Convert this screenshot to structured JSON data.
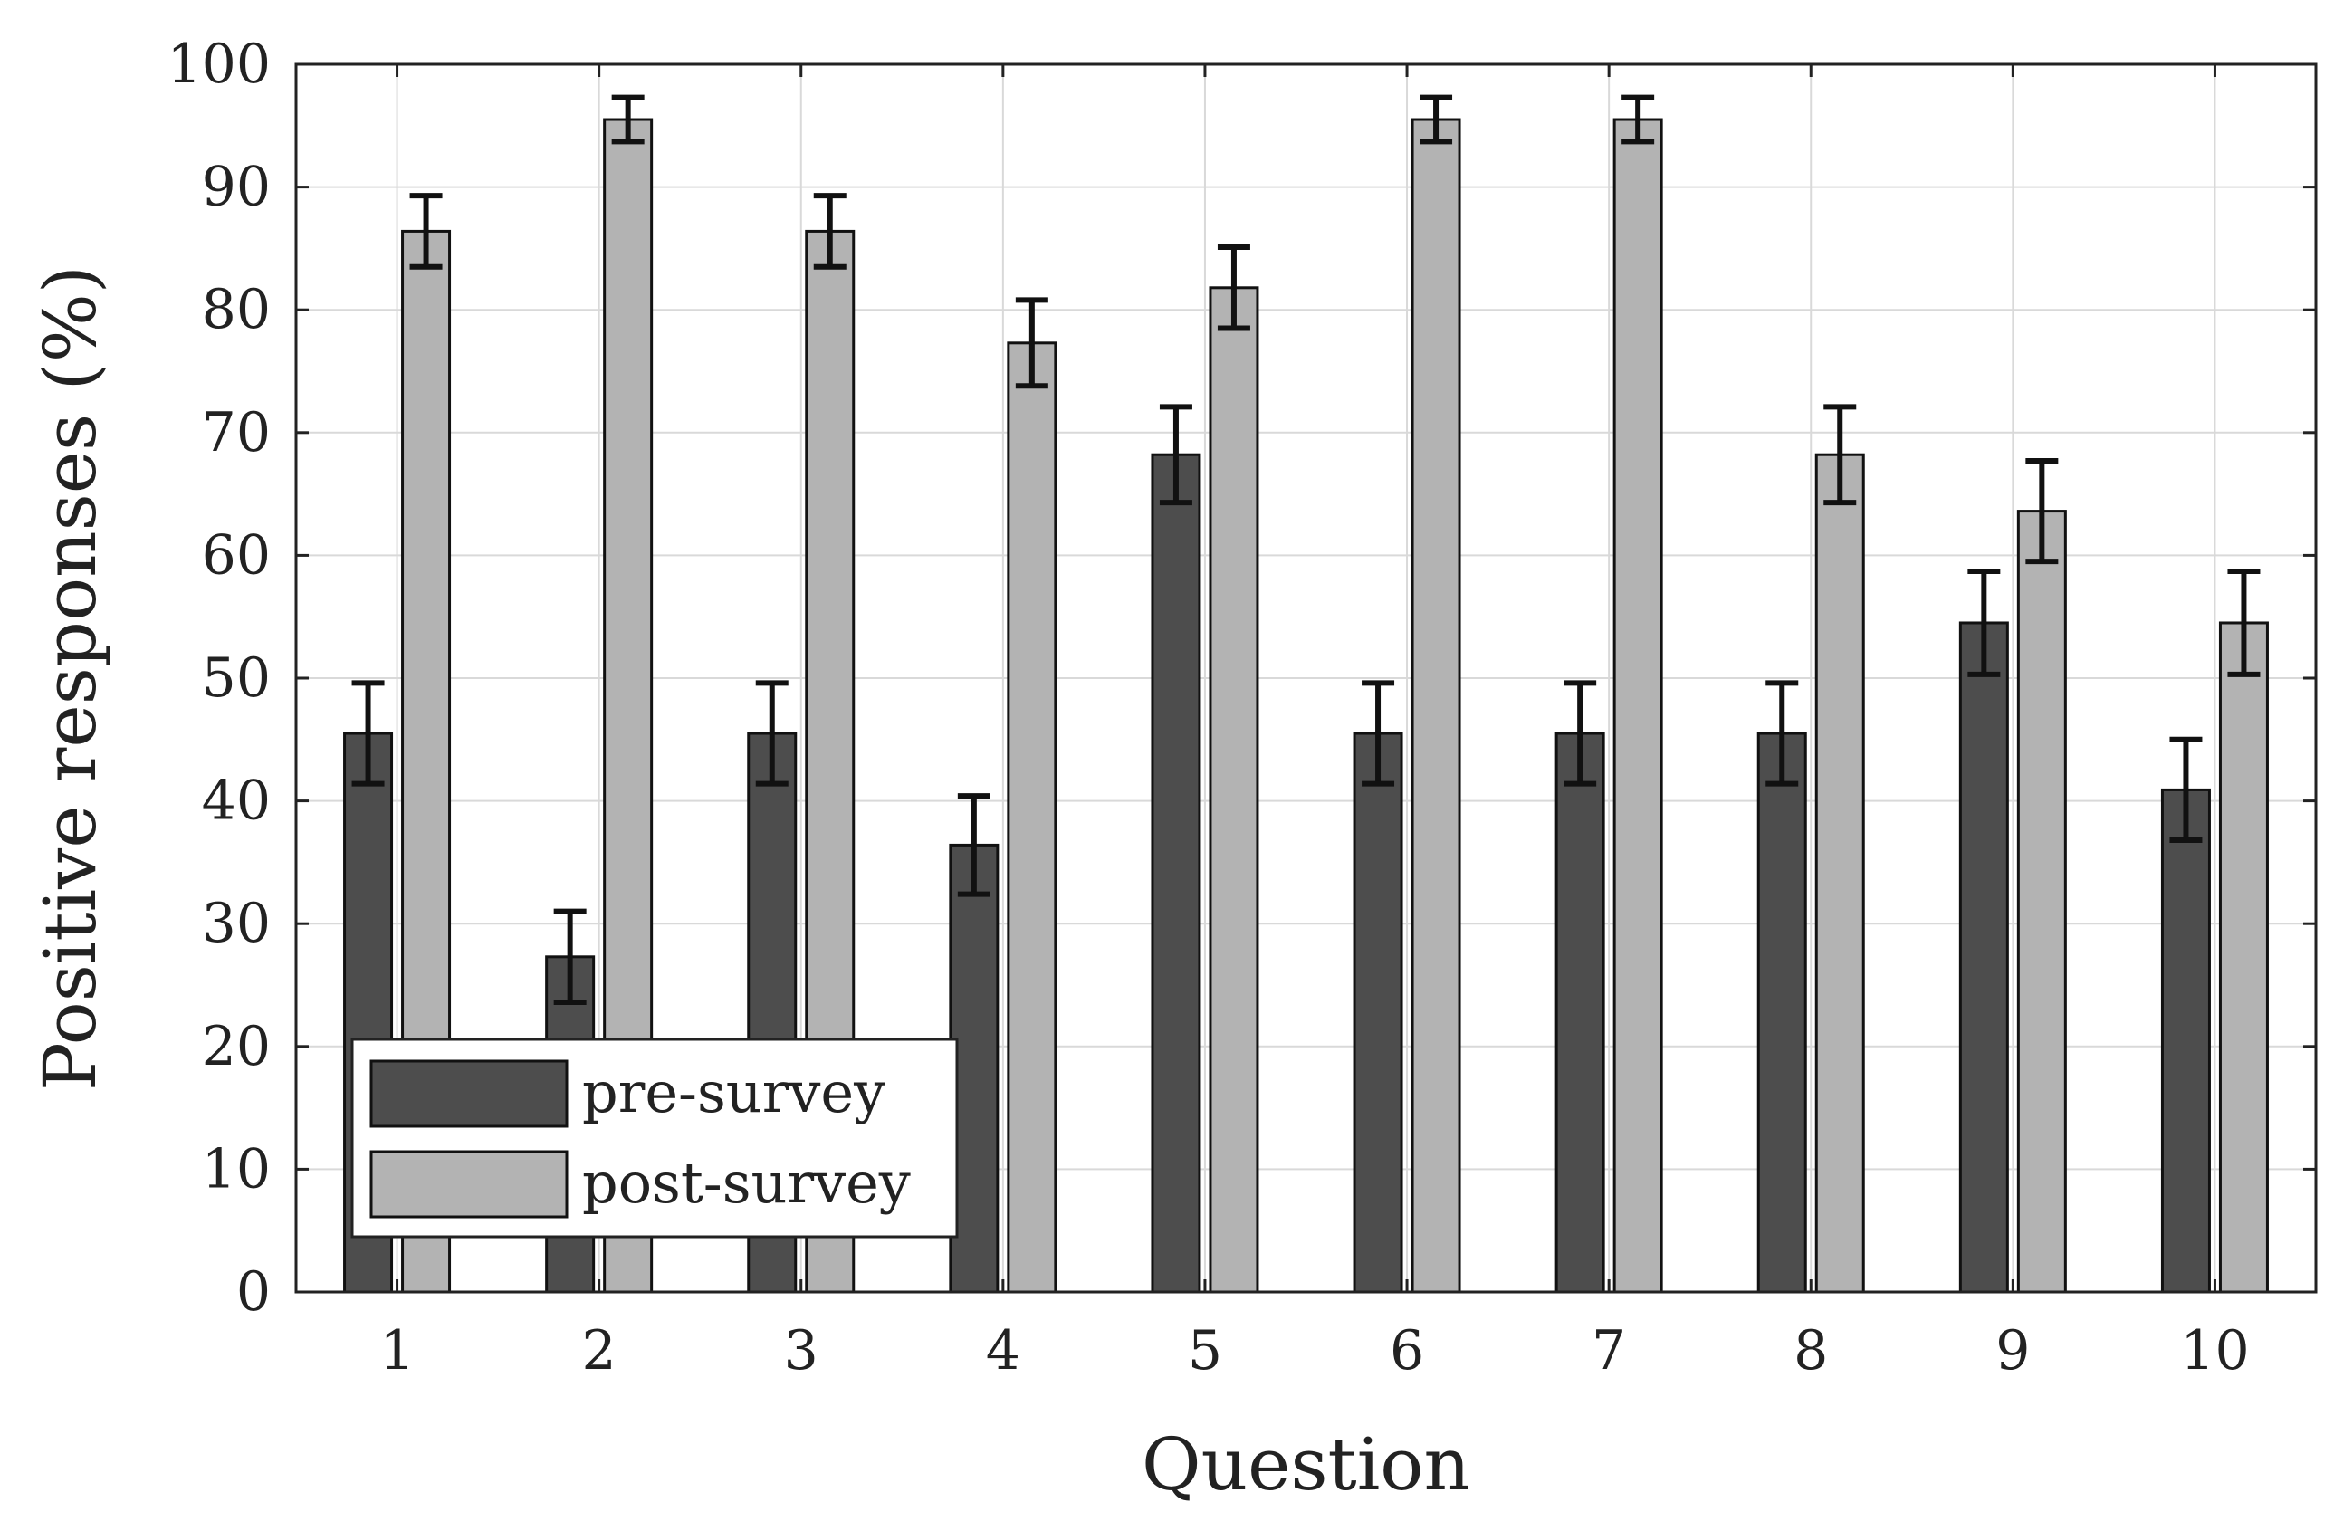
{
  "chart_data": {
    "type": "bar",
    "title": "",
    "xlabel": "Question",
    "ylabel": "Positive responses (%)",
    "categories": [
      "1",
      "2",
      "3",
      "4",
      "5",
      "6",
      "7",
      "8",
      "9",
      "10"
    ],
    "ylim": [
      0,
      100
    ],
    "yticks": [
      "0",
      "10",
      "20",
      "30",
      "40",
      "50",
      "60",
      "70",
      "80",
      "90",
      "100"
    ],
    "grid": true,
    "legend_position": "bottom-left",
    "series": [
      {
        "name": "pre-survey",
        "color": "#4d4d4d",
        "values": [
          45.5,
          27.3,
          45.5,
          36.4,
          68.2,
          45.5,
          45.5,
          45.5,
          54.5,
          40.9
        ],
        "error": [
          4.1,
          3.7,
          4.1,
          4.0,
          3.9,
          4.1,
          4.1,
          4.1,
          4.2,
          4.1
        ]
      },
      {
        "name": "post-survey",
        "color": "#b3b3b3",
        "values": [
          86.4,
          95.5,
          86.4,
          77.3,
          81.8,
          95.5,
          95.5,
          68.2,
          63.6,
          54.5
        ],
        "error": [
          2.9,
          1.8,
          2.9,
          3.5,
          3.3,
          1.8,
          1.8,
          3.9,
          4.1,
          4.2
        ]
      }
    ]
  }
}
